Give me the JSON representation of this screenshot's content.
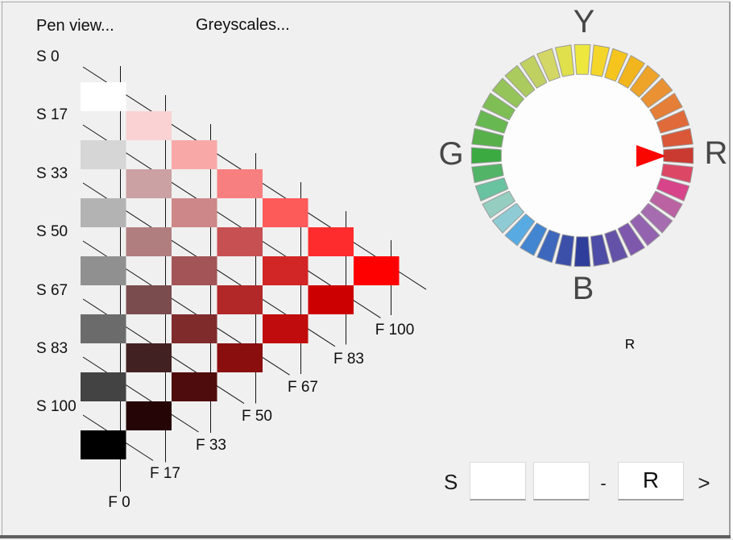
{
  "app": {
    "background": "#f0f0f0",
    "frame_bottom_color": "#5f5f5f"
  },
  "toolbar": {
    "pen_view_label": "Pen view...",
    "greyscales_label": "Greyscales..."
  },
  "triangle": {
    "line_color": "#141414",
    "s_labels": [
      "S 0",
      "S 17",
      "S 33",
      "S 50",
      "S 67",
      "S 83",
      "S 100"
    ],
    "f_labels": [
      "F 0",
      "F 17",
      "F 33",
      "F 50",
      "F 67",
      "F 83",
      "F 100"
    ],
    "swatches": [
      {
        "col": 0,
        "row": 0,
        "color": "#ffffff"
      },
      {
        "col": 0,
        "row": 2,
        "color": "#d6d6d6"
      },
      {
        "col": 0,
        "row": 4,
        "color": "#b3b3b3"
      },
      {
        "col": 0,
        "row": 6,
        "color": "#909090"
      },
      {
        "col": 0,
        "row": 8,
        "color": "#6b6b6b"
      },
      {
        "col": 0,
        "row": 10,
        "color": "#434343"
      },
      {
        "col": 0,
        "row": 12,
        "color": "#000000"
      },
      {
        "col": 1,
        "row": 1,
        "color": "#fad2d3"
      },
      {
        "col": 1,
        "row": 3,
        "color": "#cba1a3"
      },
      {
        "col": 1,
        "row": 5,
        "color": "#b17e80"
      },
      {
        "col": 1,
        "row": 7,
        "color": "#7a4c4e"
      },
      {
        "col": 1,
        "row": 9,
        "color": "#422123"
      },
      {
        "col": 1,
        "row": 11,
        "color": "#260506"
      },
      {
        "col": 2,
        "row": 2,
        "color": "#f9a8a8"
      },
      {
        "col": 2,
        "row": 4,
        "color": "#cd8788"
      },
      {
        "col": 2,
        "row": 6,
        "color": "#a25456"
      },
      {
        "col": 2,
        "row": 8,
        "color": "#7f2b2c"
      },
      {
        "col": 2,
        "row": 10,
        "color": "#4f0c0d"
      },
      {
        "col": 3,
        "row": 3,
        "color": "#f87f7f"
      },
      {
        "col": 3,
        "row": 5,
        "color": "#c75052"
      },
      {
        "col": 3,
        "row": 7,
        "color": "#b22829"
      },
      {
        "col": 3,
        "row": 9,
        "color": "#8b0e0f"
      },
      {
        "col": 4,
        "row": 4,
        "color": "#fd5a5a"
      },
      {
        "col": 4,
        "row": 6,
        "color": "#d22525"
      },
      {
        "col": 4,
        "row": 8,
        "color": "#c00c0c"
      },
      {
        "col": 5,
        "row": 5,
        "color": "#fe2c2c"
      },
      {
        "col": 5,
        "row": 7,
        "color": "#cc0001"
      },
      {
        "col": 6,
        "row": 6,
        "color": "#fe0000"
      }
    ]
  },
  "wheel": {
    "labels": {
      "top": "Y",
      "right": "R",
      "bottom": "B",
      "left": "G"
    },
    "selected_hue_label": "R",
    "pointer_color": "#fa0600",
    "segment_outline": "#9b9b9b",
    "inner_disc_color": "#fdfdfd",
    "segments": [
      {
        "angle": 0,
        "color": "#cb3a31"
      },
      {
        "angle": 10,
        "color": "#da5737"
      },
      {
        "angle": 20,
        "color": "#e06a39"
      },
      {
        "angle": 30,
        "color": "#e57e36"
      },
      {
        "angle": 40,
        "color": "#ea9233"
      },
      {
        "angle": 50,
        "color": "#eea428"
      },
      {
        "angle": 60,
        "color": "#f2b51e"
      },
      {
        "angle": 70,
        "color": "#f5c51e"
      },
      {
        "angle": 80,
        "color": "#f4d62a"
      },
      {
        "angle": 90,
        "color": "#eee83e"
      },
      {
        "angle": 100,
        "color": "#dfe04b"
      },
      {
        "angle": 110,
        "color": "#d3d765"
      },
      {
        "angle": 120,
        "color": "#c0d162"
      },
      {
        "angle": 130,
        "color": "#abcb5e"
      },
      {
        "angle": 140,
        "color": "#95c45a"
      },
      {
        "angle": 150,
        "color": "#7fbe55"
      },
      {
        "angle": 160,
        "color": "#68b851"
      },
      {
        "angle": 170,
        "color": "#58b04a"
      },
      {
        "angle": 180,
        "color": "#3aaa41"
      },
      {
        "angle": 190,
        "color": "#52b466"
      },
      {
        "angle": 200,
        "color": "#69c2a0"
      },
      {
        "angle": 210,
        "color": "#95cec1"
      },
      {
        "angle": 220,
        "color": "#8fcbd4"
      },
      {
        "angle": 230,
        "color": "#58abe2"
      },
      {
        "angle": 240,
        "color": "#4285d1"
      },
      {
        "angle": 250,
        "color": "#3d67bd"
      },
      {
        "angle": 260,
        "color": "#3c50a9"
      },
      {
        "angle": 270,
        "color": "#303e9b"
      },
      {
        "angle": 280,
        "color": "#4d4ca7"
      },
      {
        "angle": 290,
        "color": "#6452a8"
      },
      {
        "angle": 300,
        "color": "#7e58ac"
      },
      {
        "angle": 310,
        "color": "#9363af"
      },
      {
        "angle": 320,
        "color": "#a56cb0"
      },
      {
        "angle": 330,
        "color": "#bb62a2"
      },
      {
        "angle": 340,
        "color": "#d84489"
      },
      {
        "angle": 350,
        "color": "#dd4766"
      }
    ]
  },
  "controls": {
    "s_label": "S",
    "value1": "",
    "value2": "",
    "separator": "-",
    "hue_value": "R",
    "next_label": ">"
  }
}
